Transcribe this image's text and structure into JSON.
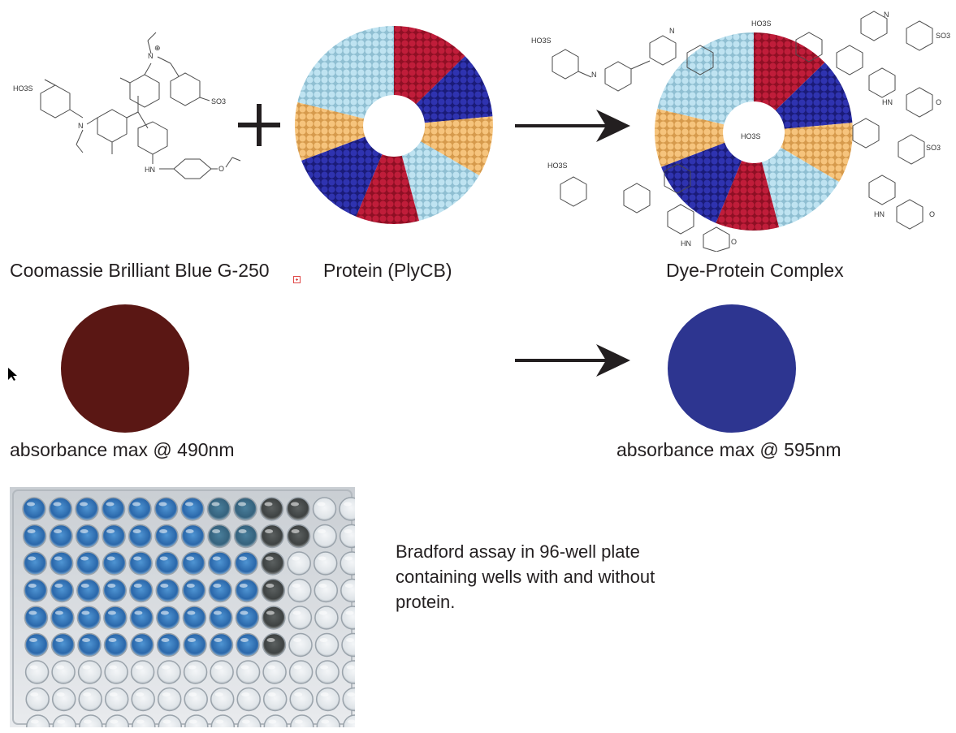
{
  "labels": {
    "dye": "Coomassie Brilliant Blue G-250",
    "protein": "Protein (PlyCB)",
    "complex": "Dye-Protein Complex",
    "abs_dye": "absorbance max @ 490nm",
    "abs_complex": "absorbance max @ 595nm"
  },
  "chem": {
    "so3h": "HO3S",
    "so3": "SO3",
    "n": "N",
    "hn": "HN",
    "o": "O",
    "plus_charge": "⊕",
    "minus": "−"
  },
  "symbols": {
    "plus": "+",
    "arrow": "→"
  },
  "colors": {
    "dye_solution": "#5a1714",
    "complex_solution": "#2d3590",
    "protein_red": "#a8142e",
    "protein_navy": "#23259a",
    "protein_lightblue": "#a9d6e8",
    "protein_tan": "#f0b768",
    "plate_blue": "#2f73b8",
    "plate_dark": "#4b4f4f"
  },
  "plate": {
    "caption_lines": [
      "Bradford assay in 96-well plate",
      "containing wells with and without",
      "protein."
    ]
  }
}
